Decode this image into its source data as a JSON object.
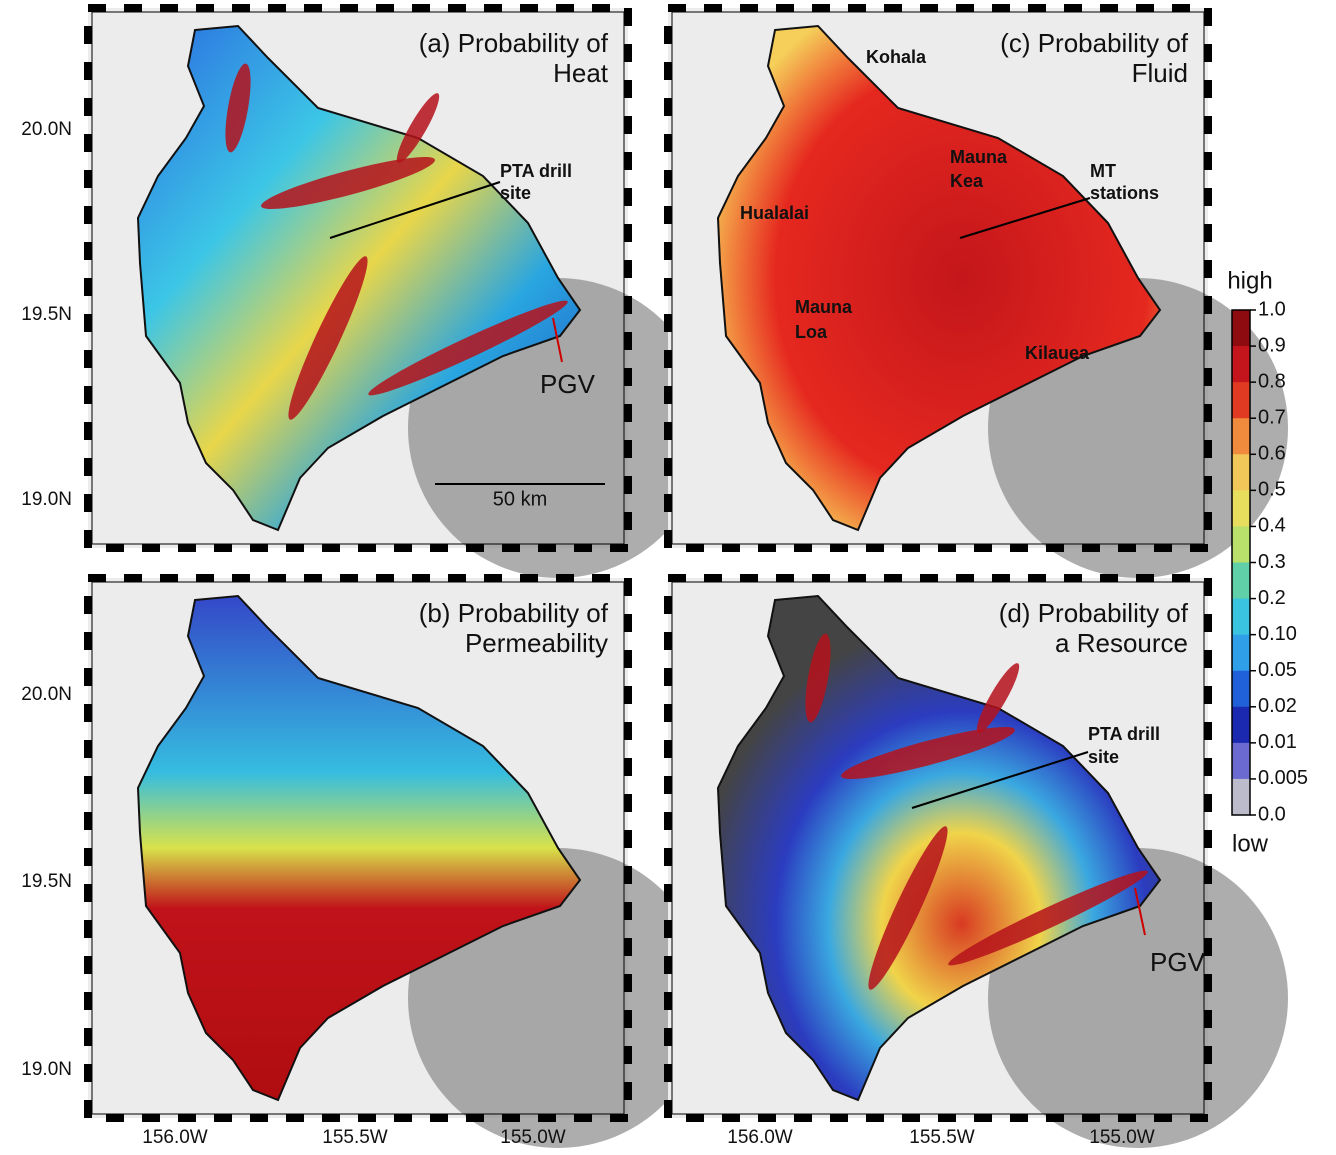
{
  "latitude_labels": [
    "20.0N",
    "19.5N",
    "19.0N"
  ],
  "longitude_labels": [
    "156.0W",
    "155.5W",
    "155.0W"
  ],
  "panels": [
    {
      "title": [
        "(a) Probability of",
        "Heat"
      ],
      "labels": {
        "drill_site": [
          "PTA drill",
          "site"
        ],
        "plant": "PGV",
        "scale": "50 km"
      }
    },
    {
      "title": [
        "(b) Probability of",
        "Permeability"
      ]
    },
    {
      "title": [
        "(c) Probability of",
        "Fluid"
      ],
      "labels": {
        "kohala": "Kohala",
        "mauna_kea": [
          "Mauna",
          "Kea"
        ],
        "mt_stations": [
          "MT",
          "stations"
        ],
        "hualalai": "Hualalai",
        "mauna_loa": [
          "Mauna",
          "Loa"
        ],
        "kilauea": "Kilauea"
      }
    },
    {
      "title": [
        "(d) Probability of",
        "a Resource"
      ],
      "labels": {
        "drill_site": [
          "PTA drill",
          "site"
        ],
        "plant": "PGV"
      }
    }
  ],
  "colorbar": {
    "top_label": "high",
    "bottom_label": "low",
    "ticks": [
      "1.0",
      "0.9",
      "0.8",
      "0.7",
      "0.6",
      "0.5",
      "0.4",
      "0.3",
      "0.2",
      "0.10",
      "0.05",
      "0.02",
      "0.01",
      "0.005",
      "0.0"
    ]
  }
}
